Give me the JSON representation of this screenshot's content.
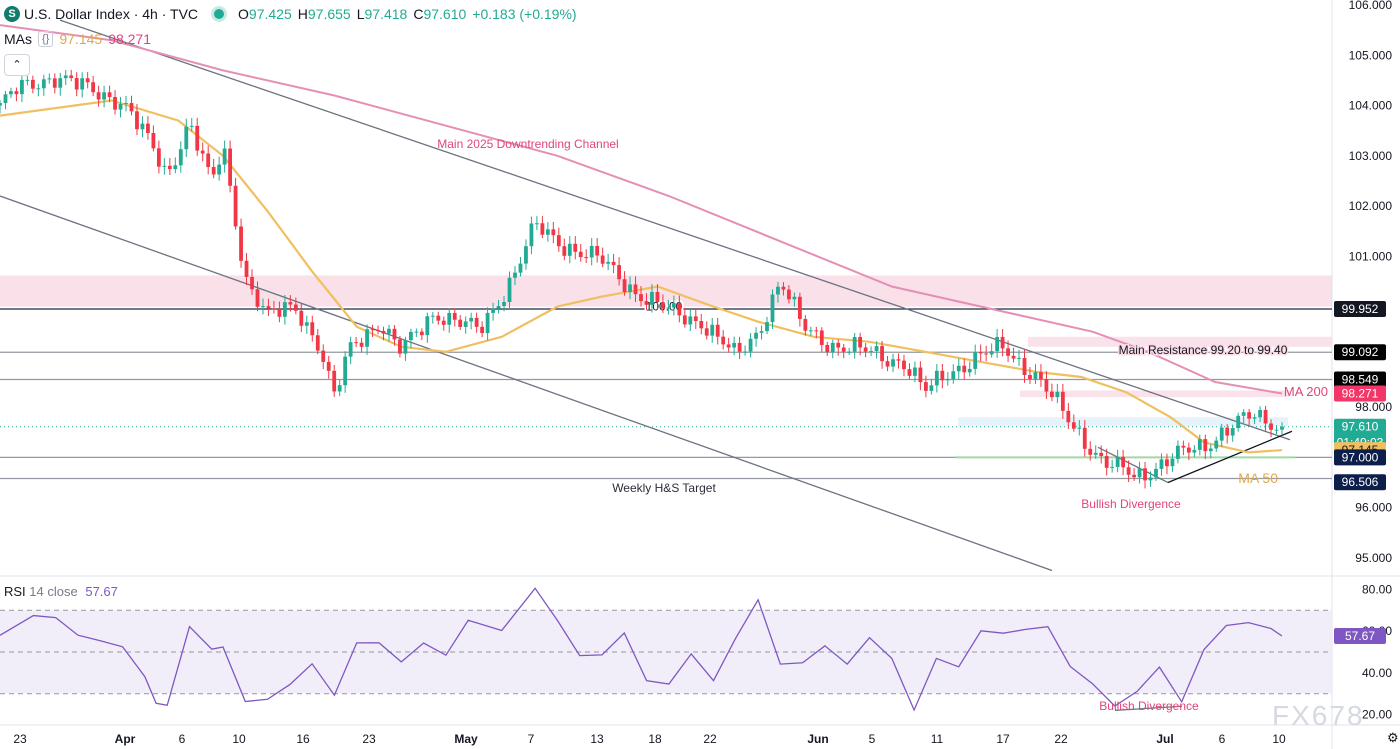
{
  "header": {
    "logo_letter": "S",
    "title": "U.S. Dollar Index · 4h · TVC",
    "open_label": "O",
    "open_value": "97.425",
    "high_label": "H",
    "high_value": "97.655",
    "low_label": "L",
    "low_value": "97.418",
    "close_label": "C",
    "close_value": "97.610",
    "change": "+0.183 (+0.19%)"
  },
  "mas": {
    "label": "MAs",
    "icon": "{}",
    "ma50_value": "97.145",
    "ma200_value": "98.271"
  },
  "collapse_icon": "chevron-up-icon",
  "collapse_glyph": "⌃",
  "rsi": {
    "label": "RSI",
    "params": "14 close",
    "value": "57.67"
  },
  "watermark": "FX678",
  "settings_glyph": "⚙",
  "colors": {
    "up": "#22ab94",
    "down": "#f23645",
    "ma50": "#f0c060",
    "ma200": "#e58fb5",
    "channel": "#6b7280",
    "rsi_line": "#7e57c2",
    "annotation": "#e0457b",
    "dark_label": "#131722"
  },
  "chart_data": {
    "type": "candlestick",
    "symbol": "U.S. Dollar Index",
    "interval": "4h",
    "y_axis_ticks": [
      "106.000",
      "105.000",
      "104.000",
      "103.000",
      "102.000",
      "101.000",
      "98.000",
      "96.000",
      "95.000"
    ],
    "ylim": [
      94.7,
      106.1
    ],
    "x_axis_labels": [
      "23",
      "Apr",
      "6",
      "10",
      "16",
      "23",
      "May",
      "7",
      "13",
      "18",
      "22",
      "Jun",
      "5",
      "11",
      "17",
      "22",
      "Jul",
      "6",
      "10"
    ],
    "price_path": [
      {
        "t": 0,
        "p": 104.0
      },
      {
        "t": 3,
        "p": 104.3
      },
      {
        "t": 10,
        "p": 104.6
      },
      {
        "t": 16,
        "p": 104.3
      },
      {
        "t": 22,
        "p": 104.1
      },
      {
        "t": 26,
        "p": 103.4
      },
      {
        "t": 30,
        "p": 102.6
      },
      {
        "t": 34,
        "p": 103.7
      },
      {
        "t": 38,
        "p": 102.4
      },
      {
        "t": 40,
        "p": 103.2
      },
      {
        "t": 44,
        "p": 100.6
      },
      {
        "t": 48,
        "p": 99.8
      },
      {
        "t": 53,
        "p": 100.0
      },
      {
        "t": 57,
        "p": 99.3
      },
      {
        "t": 60,
        "p": 98.2
      },
      {
        "t": 63,
        "p": 99.2
      },
      {
        "t": 68,
        "p": 99.7
      },
      {
        "t": 72,
        "p": 99.1
      },
      {
        "t": 78,
        "p": 99.9
      },
      {
        "t": 86,
        "p": 99.5
      },
      {
        "t": 92,
        "p": 100.6
      },
      {
        "t": 96,
        "p": 101.6
      },
      {
        "t": 100,
        "p": 101.3
      },
      {
        "t": 108,
        "p": 100.9
      },
      {
        "t": 114,
        "p": 100.3
      },
      {
        "t": 120,
        "p": 99.9
      },
      {
        "t": 126,
        "p": 99.7
      },
      {
        "t": 132,
        "p": 99.0
      },
      {
        "t": 136,
        "p": 99.5
      },
      {
        "t": 140,
        "p": 100.5
      },
      {
        "t": 144,
        "p": 99.6
      },
      {
        "t": 150,
        "p": 99.2
      },
      {
        "t": 156,
        "p": 99.1
      },
      {
        "t": 162,
        "p": 98.9
      },
      {
        "t": 166,
        "p": 98.3
      },
      {
        "t": 170,
        "p": 98.7
      },
      {
        "t": 174,
        "p": 98.9
      },
      {
        "t": 180,
        "p": 99.2
      },
      {
        "t": 186,
        "p": 98.6
      },
      {
        "t": 192,
        "p": 97.7
      },
      {
        "t": 198,
        "p": 96.9
      },
      {
        "t": 204,
        "p": 96.6
      },
      {
        "t": 210,
        "p": 97.0
      },
      {
        "t": 216,
        "p": 97.2
      },
      {
        "t": 220,
        "p": 97.6
      },
      {
        "t": 224,
        "p": 97.8
      },
      {
        "t": 230,
        "p": 97.61
      }
    ],
    "series": [
      {
        "name": "MA 50",
        "values": [
          [
            0,
            103.8
          ],
          [
            20,
            104.1
          ],
          [
            32,
            103.7
          ],
          [
            40,
            103.0
          ],
          [
            48,
            101.9
          ],
          [
            56,
            100.7
          ],
          [
            64,
            99.6
          ],
          [
            72,
            99.2
          ],
          [
            80,
            99.1
          ],
          [
            90,
            99.4
          ],
          [
            100,
            100.0
          ],
          [
            108,
            100.2
          ],
          [
            118,
            100.4
          ],
          [
            128,
            100.0
          ],
          [
            136,
            99.7
          ],
          [
            146,
            99.4
          ],
          [
            156,
            99.3
          ],
          [
            166,
            99.1
          ],
          [
            176,
            98.9
          ],
          [
            186,
            98.7
          ],
          [
            194,
            98.6
          ],
          [
            202,
            98.3
          ],
          [
            210,
            97.8
          ],
          [
            216,
            97.3
          ],
          [
            224,
            97.1
          ],
          [
            230,
            97.145
          ]
        ]
      },
      {
        "name": "MA 200",
        "values": [
          [
            0,
            105.6
          ],
          [
            20,
            105.3
          ],
          [
            40,
            104.7
          ],
          [
            60,
            104.2
          ],
          [
            80,
            103.6
          ],
          [
            100,
            103.0
          ],
          [
            120,
            102.2
          ],
          [
            140,
            101.3
          ],
          [
            160,
            100.4
          ],
          [
            180,
            99.9
          ],
          [
            196,
            99.5
          ],
          [
            206,
            99.1
          ],
          [
            218,
            98.5
          ],
          [
            230,
            98.271
          ]
        ]
      }
    ],
    "levels": [
      {
        "value": "100.00",
        "style": "dark"
      },
      {
        "value": "99.952",
        "style": "dark"
      },
      {
        "value": "99.092",
        "style": "gray"
      },
      {
        "value": "98.549",
        "style": "gray"
      },
      {
        "value": "97.000",
        "style": "gray"
      },
      {
        "value": "96.506",
        "style": "gray"
      }
    ],
    "axis_price_labels": [
      {
        "value": "99.952",
        "kind": "dark"
      },
      {
        "value": "99.092",
        "kind": "dark"
      },
      {
        "value": "98.549",
        "kind": "dark"
      },
      {
        "value": "98.271",
        "kind": "ma200"
      },
      {
        "value": "97.610",
        "kind": "last",
        "countdown": "01:49:03"
      },
      {
        "value": "97.145",
        "kind": "ma50"
      },
      {
        "value": "97.000",
        "kind": "navy"
      },
      {
        "value": "96.506",
        "kind": "navy"
      }
    ],
    "annotations": [
      "Main 2025 Downtrending Channel",
      "Main Resistance 99.20 to 99.40",
      "MA 200",
      "MA 50",
      "Weekly H&S Target",
      "Bullish Divergence"
    ],
    "rsi": {
      "y_ticks": [
        "80.00",
        "60.00",
        "40.00",
        "20.00"
      ],
      "ylim": [
        15,
        85
      ],
      "band": [
        30,
        70
      ],
      "last": 57.67,
      "annotation": "Bullish Divergence",
      "path": [
        {
          "t": 0,
          "v": 58
        },
        {
          "t": 6,
          "v": 64
        },
        {
          "t": 10,
          "v": 70
        },
        {
          "t": 14,
          "v": 58
        },
        {
          "t": 18,
          "v": 52
        },
        {
          "t": 22,
          "v": 56
        },
        {
          "t": 26,
          "v": 38
        },
        {
          "t": 28,
          "v": 22
        },
        {
          "t": 30,
          "v": 28
        },
        {
          "t": 34,
          "v": 62
        },
        {
          "t": 38,
          "v": 48
        },
        {
          "t": 40,
          "v": 56
        },
        {
          "t": 44,
          "v": 26
        },
        {
          "t": 48,
          "v": 24
        },
        {
          "t": 52,
          "v": 38
        },
        {
          "t": 56,
          "v": 44
        },
        {
          "t": 60,
          "v": 26
        },
        {
          "t": 64,
          "v": 58
        },
        {
          "t": 68,
          "v": 54
        },
        {
          "t": 72,
          "v": 42
        },
        {
          "t": 76,
          "v": 58
        },
        {
          "t": 80,
          "v": 48
        },
        {
          "t": 84,
          "v": 62
        },
        {
          "t": 90,
          "v": 64
        },
        {
          "t": 96,
          "v": 80
        },
        {
          "t": 100,
          "v": 62
        },
        {
          "t": 104,
          "v": 52
        },
        {
          "t": 108,
          "v": 48
        },
        {
          "t": 112,
          "v": 56
        },
        {
          "t": 116,
          "v": 40
        },
        {
          "t": 120,
          "v": 34
        },
        {
          "t": 124,
          "v": 46
        },
        {
          "t": 128,
          "v": 40
        },
        {
          "t": 132,
          "v": 56
        },
        {
          "t": 136,
          "v": 72
        },
        {
          "t": 140,
          "v": 48
        },
        {
          "t": 144,
          "v": 44
        },
        {
          "t": 148,
          "v": 50
        },
        {
          "t": 152,
          "v": 48
        },
        {
          "t": 156,
          "v": 56
        },
        {
          "t": 160,
          "v": 44
        },
        {
          "t": 164,
          "v": 26
        },
        {
          "t": 168,
          "v": 46
        },
        {
          "t": 172,
          "v": 40
        },
        {
          "t": 176,
          "v": 64
        },
        {
          "t": 180,
          "v": 58
        },
        {
          "t": 184,
          "v": 58
        },
        {
          "t": 188,
          "v": 66
        },
        {
          "t": 192,
          "v": 42
        },
        {
          "t": 196,
          "v": 32
        },
        {
          "t": 200,
          "v": 28
        },
        {
          "t": 204,
          "v": 30
        },
        {
          "t": 208,
          "v": 40
        },
        {
          "t": 212,
          "v": 30
        },
        {
          "t": 216,
          "v": 50
        },
        {
          "t": 220,
          "v": 60
        },
        {
          "t": 224,
          "v": 68
        },
        {
          "t": 228,
          "v": 60
        },
        {
          "t": 230,
          "v": 57.67
        }
      ]
    }
  }
}
